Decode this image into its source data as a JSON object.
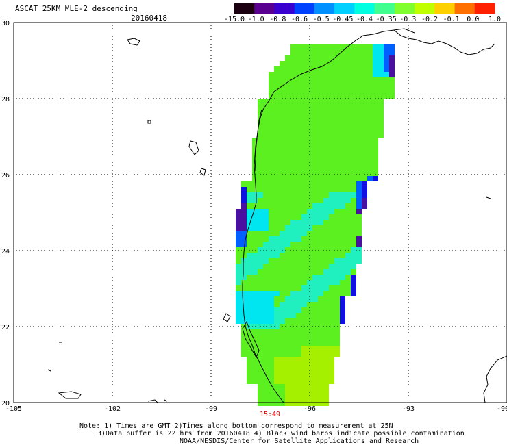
{
  "header": {
    "title": "ASCAT 25KM MLE-2 descending",
    "date": "20160418"
  },
  "colorbar": {
    "tick_labels": [
      "-15.0",
      "-1.0",
      "-0.8",
      "-0.6",
      "-0.5",
      "-0.45",
      "-0.4",
      "-0.35",
      "-0.3",
      "-0.2",
      "-0.1",
      "0.0",
      "1.0"
    ],
    "colors": [
      "#1a0010",
      "#5a0090",
      "#3a00d0",
      "#0040ff",
      "#0090ff",
      "#00d0ff",
      "#00ffe0",
      "#40ff90",
      "#80ff30",
      "#c0ff00",
      "#ffd000",
      "#ff7000",
      "#ff2000"
    ]
  },
  "axes": {
    "x_ticks": [
      "-105",
      "-102",
      "-99",
      "-96",
      "-93",
      "-90"
    ],
    "y_ticks": [
      "30",
      "28",
      "26",
      "24",
      "22",
      "20"
    ]
  },
  "time_labels": [
    "15:49"
  ],
  "notes": [
    "Note: 1) Times are GMT 2)Times along bottom correspond to measurement at 25N",
    "3)Data buffer is 22 hrs from 20160418 4) Black wind barbs indicate possible contamination",
    "NOAA/NESDIS/Center for Satellite Applications and Research"
  ],
  "swath_colors": {
    "green": "#5cf020",
    "lime": "#a4f000",
    "cyan": "#20f0c0",
    "aqua": "#00e6f0",
    "blue": "#0060ff",
    "deepblue": "#1010e0",
    "purple": "#4a10a0",
    "coast": "#000000"
  }
}
